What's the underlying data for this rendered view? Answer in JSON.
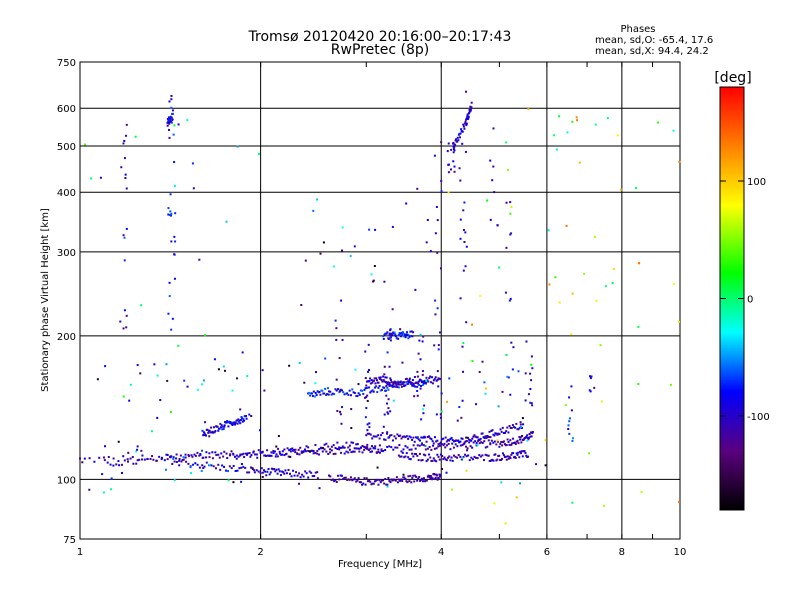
{
  "chart_data": {
    "type": "scatter",
    "title": "Tromsø 20120420 20:16:00–20:17:43",
    "subtitle": "RwPretec (8p)",
    "xlabel": "Frequency [MHz]",
    "ylabel": "Stationary phase Virtual Height [km]",
    "x_scale": "log",
    "y_scale": "log",
    "xlim": [
      1,
      10
    ],
    "ylim": [
      75,
      750
    ],
    "grid": true,
    "x_ticks": [
      1,
      2,
      4,
      6,
      8,
      10
    ],
    "x_tick_labels": [
      "1",
      "2",
      "4",
      "6",
      "8",
      "10"
    ],
    "y_ticks": [
      75,
      100,
      200,
      300,
      400,
      500,
      600,
      750
    ],
    "y_tick_labels": [
      "75",
      "100",
      "200",
      "300",
      "400",
      "500",
      "600",
      "750"
    ],
    "phases_panel": {
      "heading": "Phases",
      "line_o": "mean, sd,O: -65.4, 17.6",
      "line_x": "mean, sd,X:  94.4, 24.2"
    },
    "colorbar": {
      "label": "[deg]",
      "range": [
        -180,
        180
      ],
      "ticks": [
        100,
        0,
        -100
      ],
      "tick_labels": [
        "100",
        "0",
        "-100"
      ]
    },
    "traces": [
      {
        "x": [
          1.0,
          1.5,
          2.0,
          2.4,
          2.8,
          3.2,
          3.8,
          4.4,
          5.0,
          5.4,
          5.7
        ],
        "y": [
          110,
          111,
          113,
          114,
          115,
          116,
          117,
          118,
          119,
          121,
          124
        ],
        "phase": -110
      },
      {
        "x": [
          1.1,
          1.4,
          1.7,
          2.0,
          2.2,
          2.5
        ],
        "y": [
          108,
          110,
          106,
          104,
          103,
          102
        ],
        "phase": -100
      },
      {
        "x": [
          1.4,
          1.8,
          2.1,
          2.4,
          2.8,
          3.2
        ],
        "y": [
          111,
          113,
          114,
          116,
          118,
          115
        ],
        "phase": -100
      },
      {
        "x": [
          2.6,
          2.9,
          3.2,
          3.5,
          3.8,
          4.0
        ],
        "y": [
          101,
          99,
          99,
          100,
          101,
          101
        ],
        "phase": -115
      },
      {
        "x": [
          3.4,
          3.8,
          4.2,
          4.8,
          5.2,
          5.6
        ],
        "y": [
          112,
          111,
          111,
          111,
          112,
          113
        ],
        "phase": -105
      },
      {
        "x": [
          3.0,
          3.4,
          3.8,
          4.2,
          4.6,
          5.0,
          5.5
        ],
        "y": [
          124,
          122,
          121,
          120,
          122,
          126,
          130
        ],
        "phase": -100
      },
      {
        "x": [
          2.4,
          2.6,
          2.9,
          3.2,
          3.5,
          3.8
        ],
        "y": [
          150,
          153,
          152,
          155,
          160,
          158
        ],
        "phase": -80
      },
      {
        "x": [
          3.0,
          3.2,
          3.4,
          3.7,
          4.0
        ],
        "y": [
          160,
          162,
          158,
          163,
          161
        ],
        "phase": -110
      },
      {
        "x": [
          1.6,
          1.7,
          1.8,
          1.9
        ],
        "y": [
          125,
          128,
          132,
          135
        ],
        "phase": -90
      },
      {
        "x": [
          1.4,
          1.43
        ],
        "y": [
          560,
          580
        ],
        "phase": -90
      },
      {
        "x": [
          4.2,
          4.4,
          4.5
        ],
        "y": [
          500,
          560,
          610
        ],
        "phase": -100
      },
      {
        "x": [
          3.2,
          3.4,
          3.6
        ],
        "y": [
          200,
          200,
          201
        ],
        "phase": -80
      }
    ],
    "cluster_columns": [
      {
        "x": 1.18,
        "y0": 190,
        "y1": 560,
        "count": 16,
        "phase": -100
      },
      {
        "x": 1.42,
        "y0": 200,
        "y1": 640,
        "count": 30,
        "phase": -90
      },
      {
        "x": 2.7,
        "y0": 125,
        "y1": 280,
        "count": 12,
        "phase": -100
      },
      {
        "x": 3.0,
        "y0": 125,
        "y1": 200,
        "count": 14,
        "phase": -100
      },
      {
        "x": 3.25,
        "y0": 120,
        "y1": 210,
        "count": 22,
        "phase": -100
      },
      {
        "x": 3.7,
        "y0": 118,
        "y1": 200,
        "count": 16,
        "phase": -100
      },
      {
        "x": 3.95,
        "y0": 130,
        "y1": 530,
        "count": 20,
        "phase": -100
      },
      {
        "x": 4.15,
        "y0": 440,
        "y1": 530,
        "count": 16,
        "phase": -110
      },
      {
        "x": 4.35,
        "y0": 120,
        "y1": 650,
        "count": 22,
        "phase": -100
      },
      {
        "x": 4.9,
        "y0": 340,
        "y1": 560,
        "count": 8,
        "phase": -100
      },
      {
        "x": 5.2,
        "y0": 150,
        "y1": 390,
        "count": 12,
        "phase": -95
      },
      {
        "x": 5.6,
        "y0": 120,
        "y1": 195,
        "count": 12,
        "phase": -100
      },
      {
        "x": 6.6,
        "y0": 120,
        "y1": 160,
        "count": 10,
        "phase": -80
      },
      {
        "x": 7.1,
        "y0": 145,
        "y1": 165,
        "count": 6,
        "phase": -90
      }
    ],
    "scatter_regions": [
      {
        "x0": 1.0,
        "x1": 6.0,
        "y0": 95,
        "y1": 180,
        "count": 120,
        "phase_mean": -95
      },
      {
        "x0": 4.0,
        "x1": 10.0,
        "y0": 80,
        "y1": 600,
        "count": 50,
        "phase_mean": 60
      },
      {
        "x0": 1.0,
        "x1": 2.0,
        "y0": 85,
        "y1": 600,
        "count": 35,
        "phase_mean": -40
      },
      {
        "x0": 2.3,
        "x1": 4.0,
        "y0": 180,
        "y1": 420,
        "count": 30,
        "phase_mean": -100
      },
      {
        "x0": 6.0,
        "x1": 10.0,
        "y0": 150,
        "y1": 600,
        "count": 18,
        "phase_mean": 40
      }
    ]
  }
}
